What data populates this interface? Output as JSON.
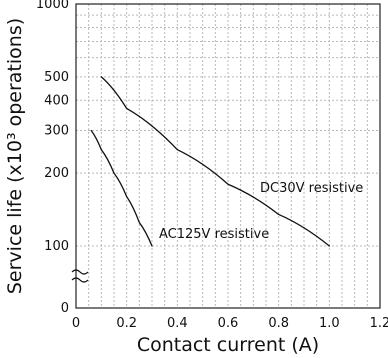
{
  "chart_data": {
    "type": "line",
    "xlabel": "Contact current (A)",
    "ylabel": "Service life (x10³ operations)",
    "xlim": [
      0,
      1.2
    ],
    "x_ticks": [
      "0",
      "0.2",
      "0.4",
      "0.6",
      "0.8",
      "1.0",
      "1.2"
    ],
    "y_ticks": [
      "0",
      "100",
      "200",
      "300",
      "400",
      "500",
      "1000"
    ],
    "y_scale": "log (broken axis: 0 to 100)",
    "ylim": [
      0,
      1000
    ],
    "grid": true,
    "series": [
      {
        "name": "DC30V resistive",
        "x": [
          0.1,
          0.2,
          0.4,
          0.6,
          0.8,
          1.0
        ],
        "y": [
          500,
          370,
          250,
          180,
          135,
          100
        ]
      },
      {
        "name": "AC125V resistive",
        "x": [
          0.06,
          0.1,
          0.15,
          0.2,
          0.25,
          0.3
        ],
        "y": [
          300,
          250,
          200,
          160,
          125,
          100
        ]
      }
    ],
    "annotations": [
      "DC30V resistive",
      "AC125V resistive"
    ]
  }
}
